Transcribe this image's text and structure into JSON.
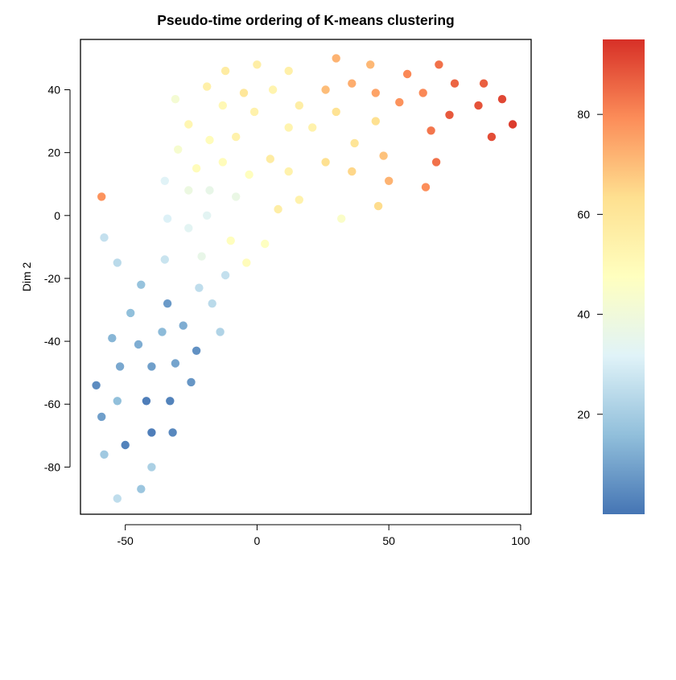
{
  "chart_data": {
    "type": "scatter",
    "title": "Pseudo-time ordering of K-means clustering",
    "xlabel": "",
    "ylabel": "Dim 2",
    "xlim": [
      -67,
      104
    ],
    "ylim": [
      -95,
      56
    ],
    "xticks": [
      -50,
      0,
      50,
      100
    ],
    "yticks": [
      -80,
      -60,
      -40,
      -20,
      0,
      20,
      40
    ],
    "grid": false,
    "legend": "right",
    "colorbar": {
      "range": [
        0,
        95
      ],
      "ticks": [
        20,
        40,
        60,
        80
      ],
      "colors": [
        "#4575b4",
        "#91bfdb",
        "#e0f3f8",
        "#ffffbf",
        "#fee090",
        "#fc8d59",
        "#d73027"
      ]
    },
    "points": [
      {
        "x": -59,
        "y": 6,
        "t": 78
      },
      {
        "x": -58,
        "y": -7,
        "t": 26
      },
      {
        "x": -53,
        "y": -15,
        "t": 24
      },
      {
        "x": -44,
        "y": -22,
        "t": 17
      },
      {
        "x": -48,
        "y": -31,
        "t": 16
      },
      {
        "x": -55,
        "y": -39,
        "t": 14
      },
      {
        "x": -52,
        "y": -48,
        "t": 11
      },
      {
        "x": -45,
        "y": -41,
        "t": 12
      },
      {
        "x": -61,
        "y": -54,
        "t": 5
      },
      {
        "x": -53,
        "y": -59,
        "t": 16
      },
      {
        "x": -59,
        "y": -64,
        "t": 9
      },
      {
        "x": -50,
        "y": -73,
        "t": 3
      },
      {
        "x": -58,
        "y": -76,
        "t": 19
      },
      {
        "x": -53,
        "y": -90,
        "t": 25
      },
      {
        "x": -44,
        "y": -87,
        "t": 18
      },
      {
        "x": -40,
        "y": -80,
        "t": 21
      },
      {
        "x": -42,
        "y": -59,
        "t": 2
      },
      {
        "x": -40,
        "y": -69,
        "t": 2
      },
      {
        "x": -33,
        "y": -59,
        "t": 3
      },
      {
        "x": -32,
        "y": -69,
        "t": 4
      },
      {
        "x": -40,
        "y": -48,
        "t": 9
      },
      {
        "x": -31,
        "y": -47,
        "t": 10
      },
      {
        "x": -25,
        "y": -53,
        "t": 7
      },
      {
        "x": -23,
        "y": -43,
        "t": 6
      },
      {
        "x": -36,
        "y": -37,
        "t": 15
      },
      {
        "x": -28,
        "y": -35,
        "t": 12
      },
      {
        "x": -14,
        "y": -37,
        "t": 22
      },
      {
        "x": -34,
        "y": -28,
        "t": 8
      },
      {
        "x": -17,
        "y": -28,
        "t": 24
      },
      {
        "x": -22,
        "y": -23,
        "t": 25
      },
      {
        "x": -12,
        "y": -19,
        "t": 26
      },
      {
        "x": -35,
        "y": -14,
        "t": 27
      },
      {
        "x": -21,
        "y": -13,
        "t": 36
      },
      {
        "x": -34,
        "y": -1,
        "t": 31
      },
      {
        "x": -26,
        "y": -4,
        "t": 33
      },
      {
        "x": -19,
        "y": 0,
        "t": 33
      },
      {
        "x": -35,
        "y": 11,
        "t": 32
      },
      {
        "x": -26,
        "y": 8,
        "t": 38
      },
      {
        "x": -18,
        "y": 8,
        "t": 36
      },
      {
        "x": -8,
        "y": 6,
        "t": 37
      },
      {
        "x": -10,
        "y": -8,
        "t": 48
      },
      {
        "x": -4,
        "y": -15,
        "t": 49
      },
      {
        "x": 3,
        "y": -9,
        "t": 47
      },
      {
        "x": -23,
        "y": 15,
        "t": 49
      },
      {
        "x": -30,
        "y": 21,
        "t": 43
      },
      {
        "x": -18,
        "y": 24,
        "t": 49
      },
      {
        "x": -13,
        "y": 17,
        "t": 49
      },
      {
        "x": -26,
        "y": 29,
        "t": 52
      },
      {
        "x": -8,
        "y": 25,
        "t": 54
      },
      {
        "x": -3,
        "y": 13,
        "t": 48
      },
      {
        "x": -31,
        "y": 37,
        "t": 42
      },
      {
        "x": -13,
        "y": 35,
        "t": 51
      },
      {
        "x": -19,
        "y": 41,
        "t": 55
      },
      {
        "x": -12,
        "y": 46,
        "t": 57
      },
      {
        "x": -5,
        "y": 39,
        "t": 60
      },
      {
        "x": -1,
        "y": 33,
        "t": 54
      },
      {
        "x": 0,
        "y": 48,
        "t": 56
      },
      {
        "x": 6,
        "y": 40,
        "t": 53
      },
      {
        "x": 12,
        "y": 46,
        "t": 55
      },
      {
        "x": 16,
        "y": 35,
        "t": 56
      },
      {
        "x": 12,
        "y": 28,
        "t": 53
      },
      {
        "x": 21,
        "y": 28,
        "t": 54
      },
      {
        "x": 5,
        "y": 18,
        "t": 57
      },
      {
        "x": 12,
        "y": 14,
        "t": 54
      },
      {
        "x": 8,
        "y": 2,
        "t": 56
      },
      {
        "x": 16,
        "y": 5,
        "t": 54
      },
      {
        "x": 32,
        "y": -1,
        "t": 45
      },
      {
        "x": 26,
        "y": 17,
        "t": 63
      },
      {
        "x": 36,
        "y": 14,
        "t": 65
      },
      {
        "x": 37,
        "y": 23,
        "t": 61
      },
      {
        "x": 30,
        "y": 33,
        "t": 62
      },
      {
        "x": 26,
        "y": 40,
        "t": 70
      },
      {
        "x": 30,
        "y": 50,
        "t": 72
      },
      {
        "x": 36,
        "y": 42,
        "t": 73
      },
      {
        "x": 43,
        "y": 48,
        "t": 71
      },
      {
        "x": 45,
        "y": 39,
        "t": 75
      },
      {
        "x": 45,
        "y": 30,
        "t": 63
      },
      {
        "x": 48,
        "y": 19,
        "t": 69
      },
      {
        "x": 50,
        "y": 11,
        "t": 72
      },
      {
        "x": 46,
        "y": 3,
        "t": 64
      },
      {
        "x": 54,
        "y": 36,
        "t": 78
      },
      {
        "x": 57,
        "y": 45,
        "t": 80
      },
      {
        "x": 63,
        "y": 39,
        "t": 80
      },
      {
        "x": 64,
        "y": 9,
        "t": 79
      },
      {
        "x": 66,
        "y": 27,
        "t": 83
      },
      {
        "x": 68,
        "y": 17,
        "t": 84
      },
      {
        "x": 69,
        "y": 48,
        "t": 84
      },
      {
        "x": 73,
        "y": 32,
        "t": 88
      },
      {
        "x": 75,
        "y": 42,
        "t": 86
      },
      {
        "x": 84,
        "y": 35,
        "t": 89
      },
      {
        "x": 86,
        "y": 42,
        "t": 87
      },
      {
        "x": 89,
        "y": 25,
        "t": 90
      },
      {
        "x": 93,
        "y": 37,
        "t": 91
      },
      {
        "x": 97,
        "y": 29,
        "t": 93
      }
    ]
  }
}
